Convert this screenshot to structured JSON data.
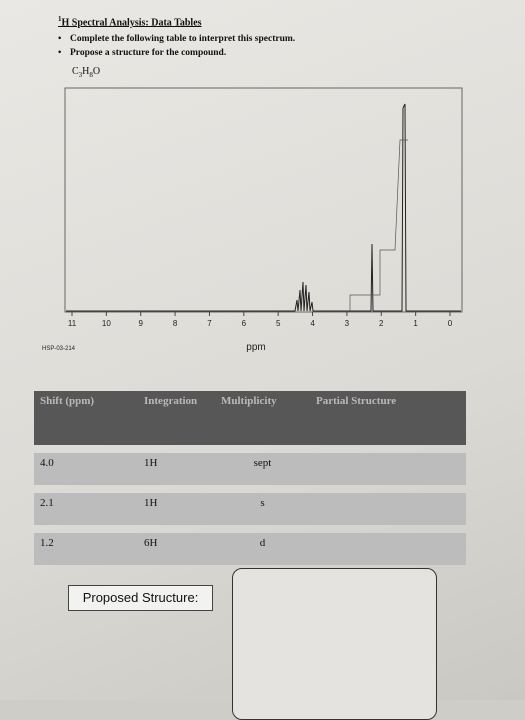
{
  "header": {
    "title_sup": "1",
    "title": "H Spectral Analysis:  Data Tables",
    "bullets": [
      "Complete the following table to interpret this spectrum.",
      "Propose a structure for the compound."
    ],
    "formula": [
      "C",
      "3",
      "H",
      "8",
      "O"
    ]
  },
  "spectrum": {
    "ticks": [
      11,
      10,
      9,
      8,
      7,
      6,
      5,
      4,
      3,
      2,
      1,
      0
    ],
    "code": "HSP-03-214",
    "axis_label": "ppm"
  },
  "table": {
    "headers": [
      "Shift (ppm)",
      "Integration",
      "Multiplicity",
      "Partial Structure"
    ],
    "rows": [
      [
        "4.0",
        "1H",
        "sept"
      ],
      [
        "2.1",
        "1H",
        "s"
      ],
      [
        "1.2",
        "6H",
        "d"
      ]
    ]
  },
  "proposed": "Proposed Structure:"
}
